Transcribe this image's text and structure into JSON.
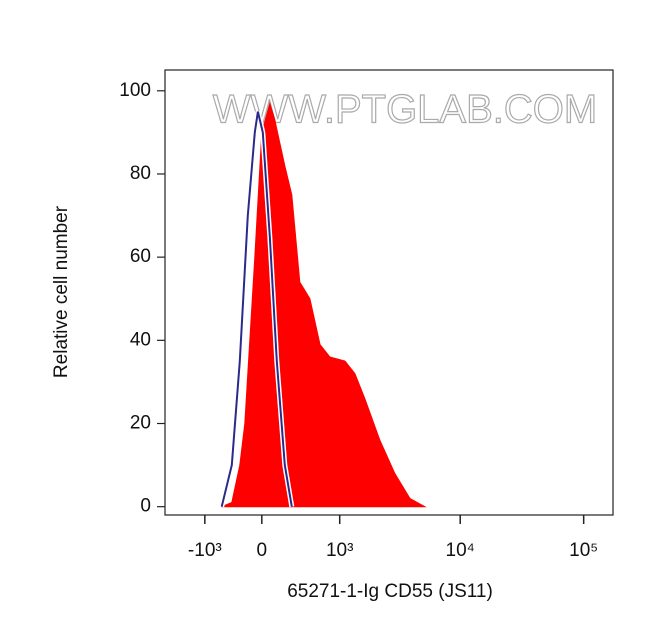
{
  "chart_data": {
    "type": "histogram-overlay",
    "watermark": "WWW.PTGLAB.COM",
    "x_label": "65271-1-Ig CD55 (JS11)",
    "y_label": "Relative cell number",
    "xscale": "biexponential",
    "xlim": [
      -2900,
      172800
    ],
    "ylim": [
      -2,
      105
    ],
    "xticks": [
      {
        "value": -1000,
        "label": "-10³"
      },
      0,
      {
        "value": 1000,
        "label": "10³"
      },
      {
        "value": 10000,
        "label": "10⁴"
      },
      {
        "value": 100000,
        "label": "10⁵"
      }
    ],
    "yticks": [
      0,
      20,
      40,
      60,
      80,
      100
    ],
    "series": [
      {
        "color": "#ff0000",
        "fill": true,
        "x": [
          -600,
          -417,
          -293,
          -222,
          -89,
          0,
          74,
          121,
          219,
          292,
          381,
          506,
          649,
          812,
          1114,
          1361,
          1653,
          2208,
          2935,
          3900,
          5168
        ],
        "values": [
          0,
          1,
          10,
          20,
          60,
          90,
          97,
          93,
          82,
          75,
          54,
          50,
          39,
          36,
          35,
          32,
          26,
          16,
          8,
          2,
          0
        ]
      },
      {
        "color": "#2a2a8c",
        "fill": false,
        "x": [
          -600,
          -417,
          -293,
          -181,
          -89,
          -50,
          9,
          74,
          140,
          219,
          292
        ],
        "values": [
          0,
          10,
          35,
          70,
          90,
          95,
          90,
          65,
          35,
          10,
          0
        ]
      }
    ]
  }
}
